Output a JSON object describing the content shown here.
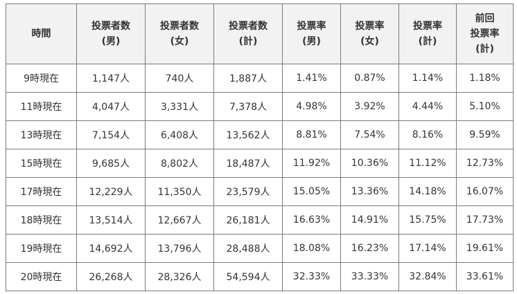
{
  "table": {
    "headers": [
      {
        "line1": "時間",
        "line2": "",
        "line3": ""
      },
      {
        "line1": "投票者数",
        "line2": "(男)",
        "line3": ""
      },
      {
        "line1": "投票者数",
        "line2": "(女)",
        "line3": ""
      },
      {
        "line1": "投票者数",
        "line2": "(計)",
        "line3": ""
      },
      {
        "line1": "投票率",
        "line2": "(男)",
        "line3": ""
      },
      {
        "line1": "投票率",
        "line2": "(女)",
        "line3": ""
      },
      {
        "line1": "投票率",
        "line2": "(計)",
        "line3": ""
      },
      {
        "line1": "前回",
        "line2": "投票率",
        "line3": "(計)"
      }
    ],
    "rows": [
      [
        "9時現在",
        "1,147人",
        "740人",
        "1,887人",
        "1.41%",
        "0.87%",
        "1.14%",
        "1.18%"
      ],
      [
        "11時現在",
        "4,047人",
        "3,331人",
        "7,378人",
        "4.98%",
        "3.92%",
        "4.44%",
        "5.10%"
      ],
      [
        "13時現在",
        "7,154人",
        "6,408人",
        "13,562人",
        "8.81%",
        "7.54%",
        "8.16%",
        "9.59%"
      ],
      [
        "15時現在",
        "9,685人",
        "8,802人",
        "18,487人",
        "11.92%",
        "10.36%",
        "11.12%",
        "12.73%"
      ],
      [
        "17時現在",
        "12,229人",
        "11,350人",
        "23,579人",
        "15.05%",
        "13.36%",
        "14.18%",
        "16.07%"
      ],
      [
        "18時現在",
        "13,514人",
        "12,667人",
        "26,181人",
        "16.63%",
        "14.91%",
        "15.75%",
        "17.73%"
      ],
      [
        "19時現在",
        "14,692人",
        "13,796人",
        "28,488人",
        "18.08%",
        "16.23%",
        "17.14%",
        "19.61%"
      ],
      [
        "20時現在",
        "26,268人",
        "28,326人",
        "54,594人",
        "32.33%",
        "33.33%",
        "32.84%",
        "33.61%"
      ]
    ]
  }
}
